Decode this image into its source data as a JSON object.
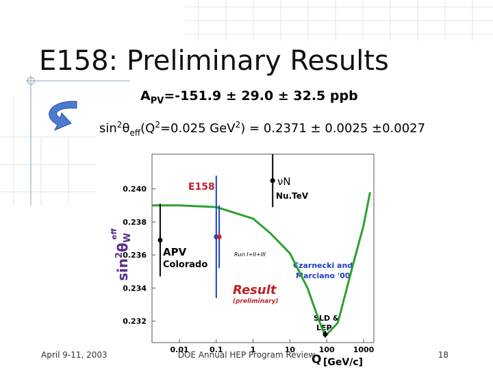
{
  "title": "E158: Preliminary Results",
  "apv_line": {
    "a": "A",
    "sub": "PV",
    "rest": "=-151.9 ± 29.0 ± 32.5 ppb"
  },
  "sin_line": {
    "sin": "sin",
    "sup1": "2",
    "theta": "θ",
    "sub": "eff",
    "open": "(Q",
    "sup2": "2",
    "mid": "=0.025 GeV",
    "sup3": "2",
    "rest": ") = 0.2371 ± 0.0025 ±0.0027"
  },
  "footer": {
    "date": "April 9-11, 2003",
    "event": "DOE Annual HEP Program Review",
    "page": "18"
  },
  "chart_data": {
    "type": "line",
    "x_label": "Q",
    "x_unit": "[GeV/c]",
    "y_label": {
      "sin": "sin",
      "sup": "2",
      "theta": "θ",
      "sub": "W",
      "eff": "eff"
    },
    "xscale": "log",
    "xlim": [
      0.0018,
      1900
    ],
    "xticks": [
      0.01,
      0.1,
      1,
      10,
      100,
      1000
    ],
    "ylim": [
      0.2307,
      0.2421
    ],
    "yticks": [
      {
        "value": 0.24,
        "label": "0.240"
      },
      {
        "value": 0.238,
        "label": "0.238"
      },
      {
        "value": 0.236,
        "label": "0.236"
      },
      {
        "value": 0.234,
        "label": "0.234"
      },
      {
        "value": 0.232,
        "label": "0.232"
      }
    ],
    "series": [
      {
        "name": "Czarnecki and Marciano '00",
        "label": [
          "Czarnecki and",
          "Marciano '00"
        ],
        "color": "#2ca02c",
        "x": [
          0.0018,
          0.01,
          0.1,
          1,
          3,
          10,
          30,
          60,
          91,
          200,
          500,
          1000,
          1500
        ],
        "values": [
          0.239,
          0.239,
          0.2389,
          0.2382,
          0.2373,
          0.2361,
          0.234,
          0.2321,
          0.2311,
          0.2319,
          0.2353,
          0.2378,
          0.2398
        ]
      }
    ],
    "points": [
      {
        "label": [
          "APV",
          "Colorado"
        ],
        "x": 0.003,
        "value": 0.2369,
        "error": 0.0022,
        "color": "#000000",
        "marker_color": "#000000"
      },
      {
        "label": [
          "E158"
        ],
        "x": 0.1,
        "value": 0.2371,
        "error": 0.0037,
        "color": "#1f3fbf",
        "marker_color": "#1f3fbf"
      },
      {
        "label": [
          "Result",
          "(preliminary)",
          "Run I+II+III"
        ],
        "x": 0.12,
        "value": 0.2371,
        "error": 0.0019,
        "color": "#1f3fbf",
        "marker_color": "#d62020"
      },
      {
        "label": [
          "νN",
          "Nu.TeV"
        ],
        "x": 3.4,
        "value": 0.2405,
        "error": 0.0016,
        "color": "#000000",
        "marker_color": "#000000"
      },
      {
        "label": [
          "SLD &",
          "LEP"
        ],
        "x": 91,
        "value": 0.2312,
        "error": 0.0002,
        "color": "#000000",
        "marker_color": "#000000"
      }
    ]
  }
}
